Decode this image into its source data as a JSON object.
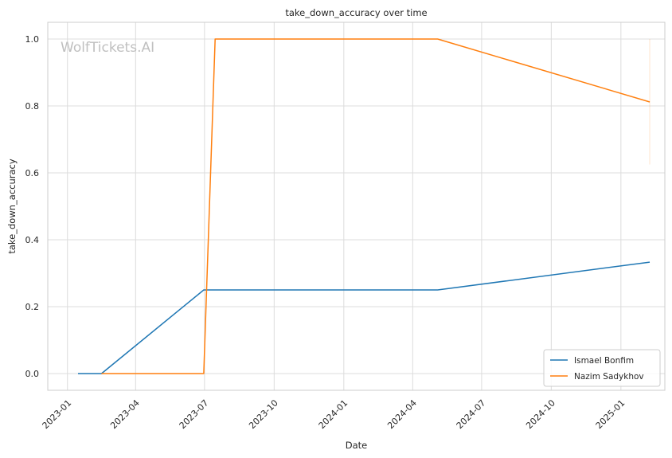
{
  "chart_data": {
    "type": "line",
    "title": "take_down_accuracy over time",
    "xlabel": "Date",
    "ylabel": "take_down_accuracy",
    "watermark": "WolfTickets.AI",
    "xlim": [
      "2022-12-06",
      "2025-02-28"
    ],
    "ylim": [
      -0.05,
      1.05
    ],
    "x_ticks": [
      "2023-01",
      "2023-04",
      "2023-07",
      "2023-10",
      "2024-01",
      "2024-04",
      "2024-07",
      "2024-10",
      "2025-01"
    ],
    "y_ticks": [
      "0.0",
      "0.2",
      "0.4",
      "0.6",
      "0.8",
      "1.0"
    ],
    "grid": true,
    "legend_position": "bottom-right",
    "series": [
      {
        "name": "Ismael Bonfim",
        "color": "#1f77b4",
        "points": [
          {
            "x": "2023-01-15",
            "y": 0.0
          },
          {
            "x": "2023-02-15",
            "y": 0.0
          },
          {
            "x": "2023-06-30",
            "y": 0.25
          },
          {
            "x": "2024-05-04",
            "y": 0.25
          },
          {
            "x": "2025-02-08",
            "y": 0.333
          }
        ]
      },
      {
        "name": "Nazim Sadykhov",
        "color": "#ff7f0e",
        "points": [
          {
            "x": "2023-02-15",
            "y": 0.0
          },
          {
            "x": "2023-06-30",
            "y": 0.0
          },
          {
            "x": "2023-07-15",
            "y": 1.0
          },
          {
            "x": "2024-05-04",
            "y": 1.0
          },
          {
            "x": "2025-02-08",
            "y": 0.812
          }
        ],
        "band": {
          "x": "2025-02-08",
          "low": 0.625,
          "high": 1.0
        }
      }
    ]
  }
}
